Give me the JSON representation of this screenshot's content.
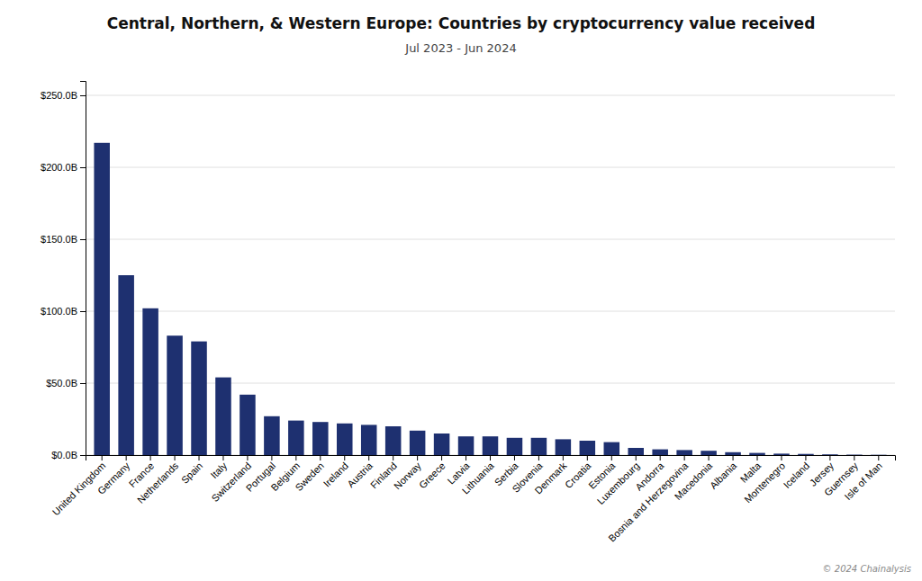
{
  "chart_data": {
    "type": "bar",
    "title": "Central, Northern, & Western Europe: Countries by cryptocurrency value received",
    "subtitle": "Jul 2023 - Jun 2024",
    "annotations": [
      "© 2024 Chainalysis"
    ],
    "categories": [
      "United Kingdom",
      "Germany",
      "France",
      "Netherlands",
      "Spain",
      "Italy",
      "Switzerland",
      "Portugal",
      "Belgium",
      "Sweden",
      "Ireland",
      "Austria",
      "Finland",
      "Norway",
      "Greece",
      "Latvia",
      "Lithuania",
      "Serbia",
      "Slovenia",
      "Denmark",
      "Croatia",
      "Estonia",
      "Luxembourg",
      "Andorra",
      "Bosnia and Herzegovina",
      "Macedonia",
      "Albania",
      "Malta",
      "Montenegro",
      "Iceland",
      "Jersey",
      "Guernsey",
      "Isle of Man"
    ],
    "values": [
      217,
      125,
      102,
      83,
      79,
      54,
      42,
      27,
      24,
      23,
      22,
      21,
      20,
      17,
      15,
      13,
      13,
      12,
      12,
      11,
      10,
      9,
      5,
      4,
      3.5,
      3,
      2,
      1.5,
      1,
      0.8,
      0.5,
      0.3,
      0.2
    ],
    "color": "#1e3070",
    "ylim": [
      0,
      260
    ],
    "yticks": [
      {
        "value": 0,
        "label": "$0.0B"
      },
      {
        "value": 50,
        "label": "$50.0B"
      },
      {
        "value": 100,
        "label": "$100.0B"
      },
      {
        "value": 150,
        "label": "$150.0B"
      },
      {
        "value": 200,
        "label": "$200.0B"
      },
      {
        "value": 250,
        "label": "$250.0B"
      }
    ],
    "grid": true
  }
}
